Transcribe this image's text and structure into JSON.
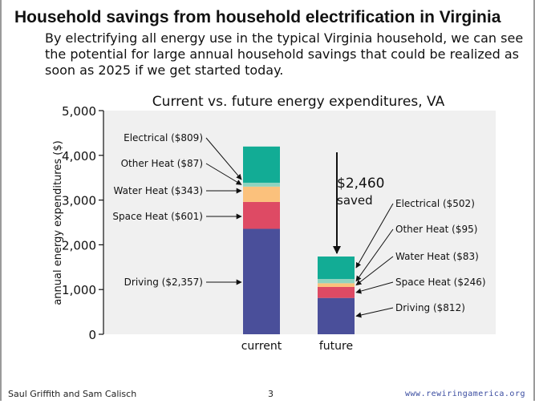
{
  "slide": {
    "title": "Household savings from household electrification in Virginia",
    "subtitle": "By electrifying all energy use in the typical Virginia household, we can see the potential for large annual household savings that could be realized as soon as 2025 if we get started today.",
    "footer_authors": "Saul Griffith and Sam Calisch",
    "page_number": "3",
    "footer_url": "www.rewiringamerica.org"
  },
  "chart_data": {
    "type": "bar",
    "stacked": true,
    "title": "Current vs. future energy expenditures, VA",
    "ylabel": "annual energy expenditures ($)",
    "xlabel": "",
    "ylim": [
      0,
      5000
    ],
    "yticks": [
      0,
      1000,
      2000,
      3000,
      4000,
      5000
    ],
    "ytick_labels": [
      "0",
      "1,000",
      "2,000",
      "3,000",
      "4,000",
      "5,000"
    ],
    "categories": [
      "current",
      "future"
    ],
    "series": [
      {
        "key": "driving",
        "values": [
          2357,
          812
        ],
        "color": "#4a4f9a"
      },
      {
        "key": "space_heat",
        "values": [
          601,
          246
        ],
        "color": "#de4a64"
      },
      {
        "key": "water_heat",
        "values": [
          343,
          83
        ],
        "color": "#fbc17c"
      },
      {
        "key": "other_heat",
        "values": [
          87,
          95
        ],
        "color": "#8fd3bf"
      },
      {
        "key": "electrical",
        "values": [
          809,
          502
        ],
        "color": "#12ac95"
      }
    ],
    "annotations": {
      "current": [
        {
          "series": "electrical",
          "text": "Electrical ($809)"
        },
        {
          "series": "other_heat",
          "text": "Other Heat ($87)"
        },
        {
          "series": "water_heat",
          "text": "Water Heat ($343)"
        },
        {
          "series": "space_heat",
          "text": "Space Heat ($601)"
        },
        {
          "series": "driving",
          "text": "Driving ($2,357)"
        }
      ],
      "future": [
        {
          "series": "electrical",
          "text": "Electrical ($502)"
        },
        {
          "series": "other_heat",
          "text": "Other Heat ($95)"
        },
        {
          "series": "water_heat",
          "text": "Water Heat ($83)"
        },
        {
          "series": "space_heat",
          "text": "Space Heat ($246)"
        },
        {
          "series": "driving",
          "text": "Driving ($812)"
        }
      ],
      "savings_amount": "$2,460",
      "savings_word": "saved"
    },
    "plot_background": "#f0f0f0",
    "grid": false
  }
}
